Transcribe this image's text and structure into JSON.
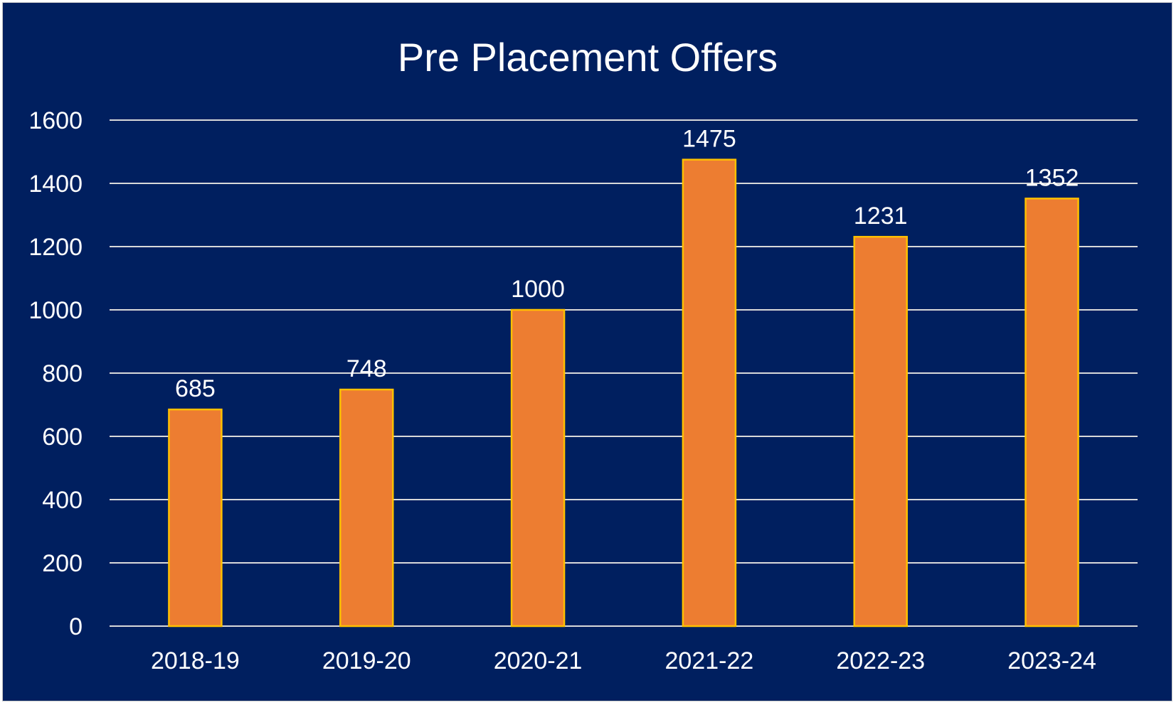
{
  "chart_data": {
    "type": "bar",
    "title": "Pre Placement Offers",
    "xlabel": "",
    "ylabel": "",
    "categories": [
      "2018-19",
      "2019-20",
      "2020-21",
      "2021-22",
      "2022-23",
      "2023-24"
    ],
    "values": [
      685,
      748,
      1000,
      1475,
      1231,
      1352
    ],
    "ylim": [
      0,
      1600
    ],
    "yticks": [
      0,
      200,
      400,
      600,
      800,
      1000,
      1200,
      1400,
      1600
    ],
    "grid": true,
    "legend": "none",
    "data_labels": true
  },
  "colors": {
    "background": "#001f5f",
    "bar_fill": "#ed7d31",
    "bar_border": "#ffc000",
    "text": "#ffffff",
    "gridline": "#d9d9d9"
  }
}
